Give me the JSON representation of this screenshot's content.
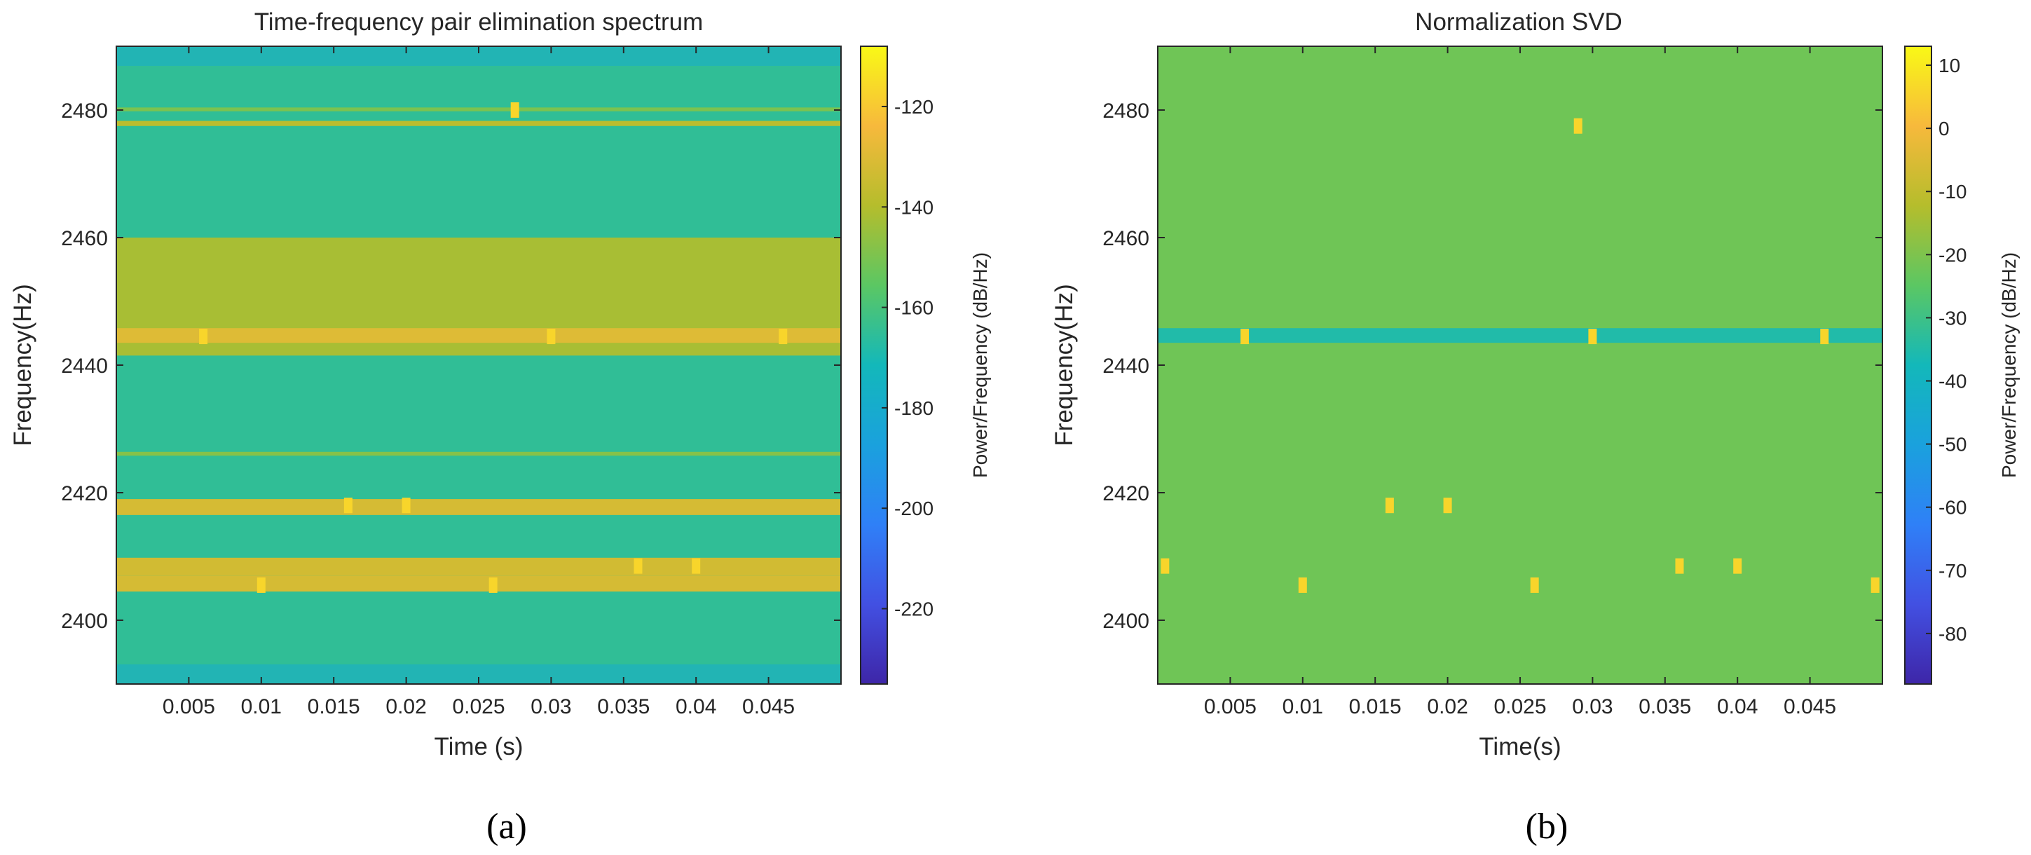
{
  "figure": {
    "caption_a": "(a)",
    "caption_b": "(b)"
  },
  "chart_data": [
    {
      "type": "heatmap",
      "panel": "a",
      "title": "Time-frequency pair elimination spectrum",
      "xlabel": "Time (s)",
      "ylabel": "Frequency(Hz)",
      "colorbar_label": "Power/Frequency (dB/Hz)",
      "xlim": [
        0,
        0.05
      ],
      "ylim": [
        2390,
        2490
      ],
      "xticks": [
        0.005,
        0.01,
        0.015,
        0.02,
        0.025,
        0.03,
        0.035,
        0.04,
        0.045
      ],
      "xtick_labels": [
        "0.005",
        "0.01",
        "0.015",
        "0.02",
        "0.025",
        "0.03",
        "0.035",
        "0.04",
        "0.045"
      ],
      "yticks": [
        2400,
        2420,
        2440,
        2460,
        2480
      ],
      "ytick_labels": [
        "2400",
        "2420",
        "2440",
        "2460",
        "2480"
      ],
      "clim": [
        -235,
        -108
      ],
      "cticks": [
        -220,
        -200,
        -180,
        -160,
        -140,
        -120
      ],
      "ctick_labels": [
        "-220",
        "-200",
        "-180",
        "-160",
        "-140",
        "-120"
      ],
      "background_value": -165,
      "edge_value": -180,
      "bands": [
        {
          "f0": 2441.5,
          "f1": 2460,
          "value": -142
        },
        {
          "f0": 2443.5,
          "f1": 2445.8,
          "value": -130
        },
        {
          "f0": 2416.5,
          "f1": 2419,
          "value": -132
        },
        {
          "f0": 2407,
          "f1": 2409.8,
          "value": -133
        },
        {
          "f0": 2404.5,
          "f1": 2407,
          "value": -132
        },
        {
          "f0": 2477.5,
          "f1": 2478.3,
          "value": -138
        },
        {
          "f0": 2479.8,
          "f1": 2480.4,
          "value": -150
        },
        {
          "f0": 2425.8,
          "f1": 2426.4,
          "value": -148
        }
      ],
      "markers": [
        {
          "t": 0.006,
          "f": 2444.5
        },
        {
          "t": 0.03,
          "f": 2444.5
        },
        {
          "t": 0.046,
          "f": 2444.5
        },
        {
          "t": 0.016,
          "f": 2418
        },
        {
          "t": 0.02,
          "f": 2418
        },
        {
          "t": 0.036,
          "f": 2408.5
        },
        {
          "t": 0.04,
          "f": 2408.5
        },
        {
          "t": 0.01,
          "f": 2405.5
        },
        {
          "t": 0.026,
          "f": 2405.5
        },
        {
          "t": 0.0275,
          "f": 2480
        }
      ]
    },
    {
      "type": "heatmap",
      "panel": "b",
      "title": "Normalization SVD",
      "xlabel": "Time(s)",
      "ylabel": "Frequency(Hz)",
      "colorbar_label": "Power/Frequency (dB/Hz)",
      "xlim": [
        0,
        0.05
      ],
      "ylim": [
        2390,
        2490
      ],
      "xticks": [
        0.005,
        0.01,
        0.015,
        0.02,
        0.025,
        0.03,
        0.035,
        0.04,
        0.045
      ],
      "xtick_labels": [
        "0.005",
        "0.01",
        "0.015",
        "0.02",
        "0.025",
        "0.03",
        "0.035",
        "0.04",
        "0.045"
      ],
      "yticks": [
        2400,
        2420,
        2440,
        2460,
        2480
      ],
      "ytick_labels": [
        "2400",
        "2420",
        "2440",
        "2460",
        "2480"
      ],
      "clim": [
        -88,
        13
      ],
      "cticks": [
        -80,
        -70,
        -60,
        -50,
        -40,
        -30,
        -20,
        -10,
        0,
        10
      ],
      "ctick_labels": [
        "-80",
        "-70",
        "-60",
        "-50",
        "-40",
        "-30",
        "-20",
        "-10",
        "0",
        "10"
      ],
      "background_value": -22,
      "bands": [
        {
          "f0": 2443.5,
          "f1": 2445.8,
          "value": -35
        }
      ],
      "markers": [
        {
          "t": 0.0005,
          "f": 2408.5
        },
        {
          "t": 0.006,
          "f": 2444.5
        },
        {
          "t": 0.03,
          "f": 2444.5
        },
        {
          "t": 0.046,
          "f": 2444.5
        },
        {
          "t": 0.016,
          "f": 2418
        },
        {
          "t": 0.02,
          "f": 2418
        },
        {
          "t": 0.036,
          "f": 2408.5
        },
        {
          "t": 0.04,
          "f": 2408.5
        },
        {
          "t": 0.01,
          "f": 2405.5
        },
        {
          "t": 0.026,
          "f": 2405.5
        },
        {
          "t": 0.0495,
          "f": 2405.5
        },
        {
          "t": 0.029,
          "f": 2477.5
        }
      ]
    }
  ]
}
